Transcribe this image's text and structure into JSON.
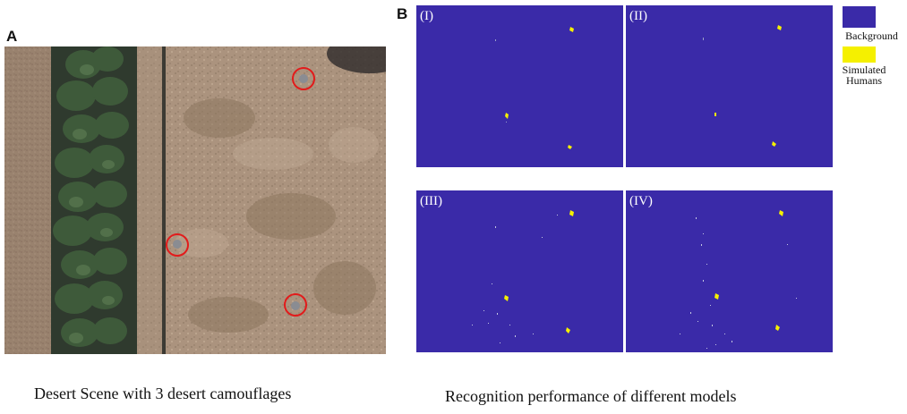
{
  "figure": {
    "panel_a": {
      "letter": "A",
      "caption": "Desert Scene with 3 desert camouflages",
      "markers": [
        {
          "label": "camouflage-1"
        },
        {
          "label": "camouflage-2"
        },
        {
          "label": "camouflage-3"
        }
      ]
    },
    "panel_b": {
      "letter": "B",
      "caption": "Recognition performance of different models",
      "maps": [
        {
          "label": "(I)"
        },
        {
          "label": "(II)"
        },
        {
          "label": "(III)"
        },
        {
          "label": "(IV)"
        }
      ],
      "legend": {
        "background_label": "Background",
        "humans_label_line1": "Simulated",
        "humans_label_line2": "Humans",
        "background_color": "#3a2aa8",
        "humans_color": "#f5f000"
      }
    }
  }
}
